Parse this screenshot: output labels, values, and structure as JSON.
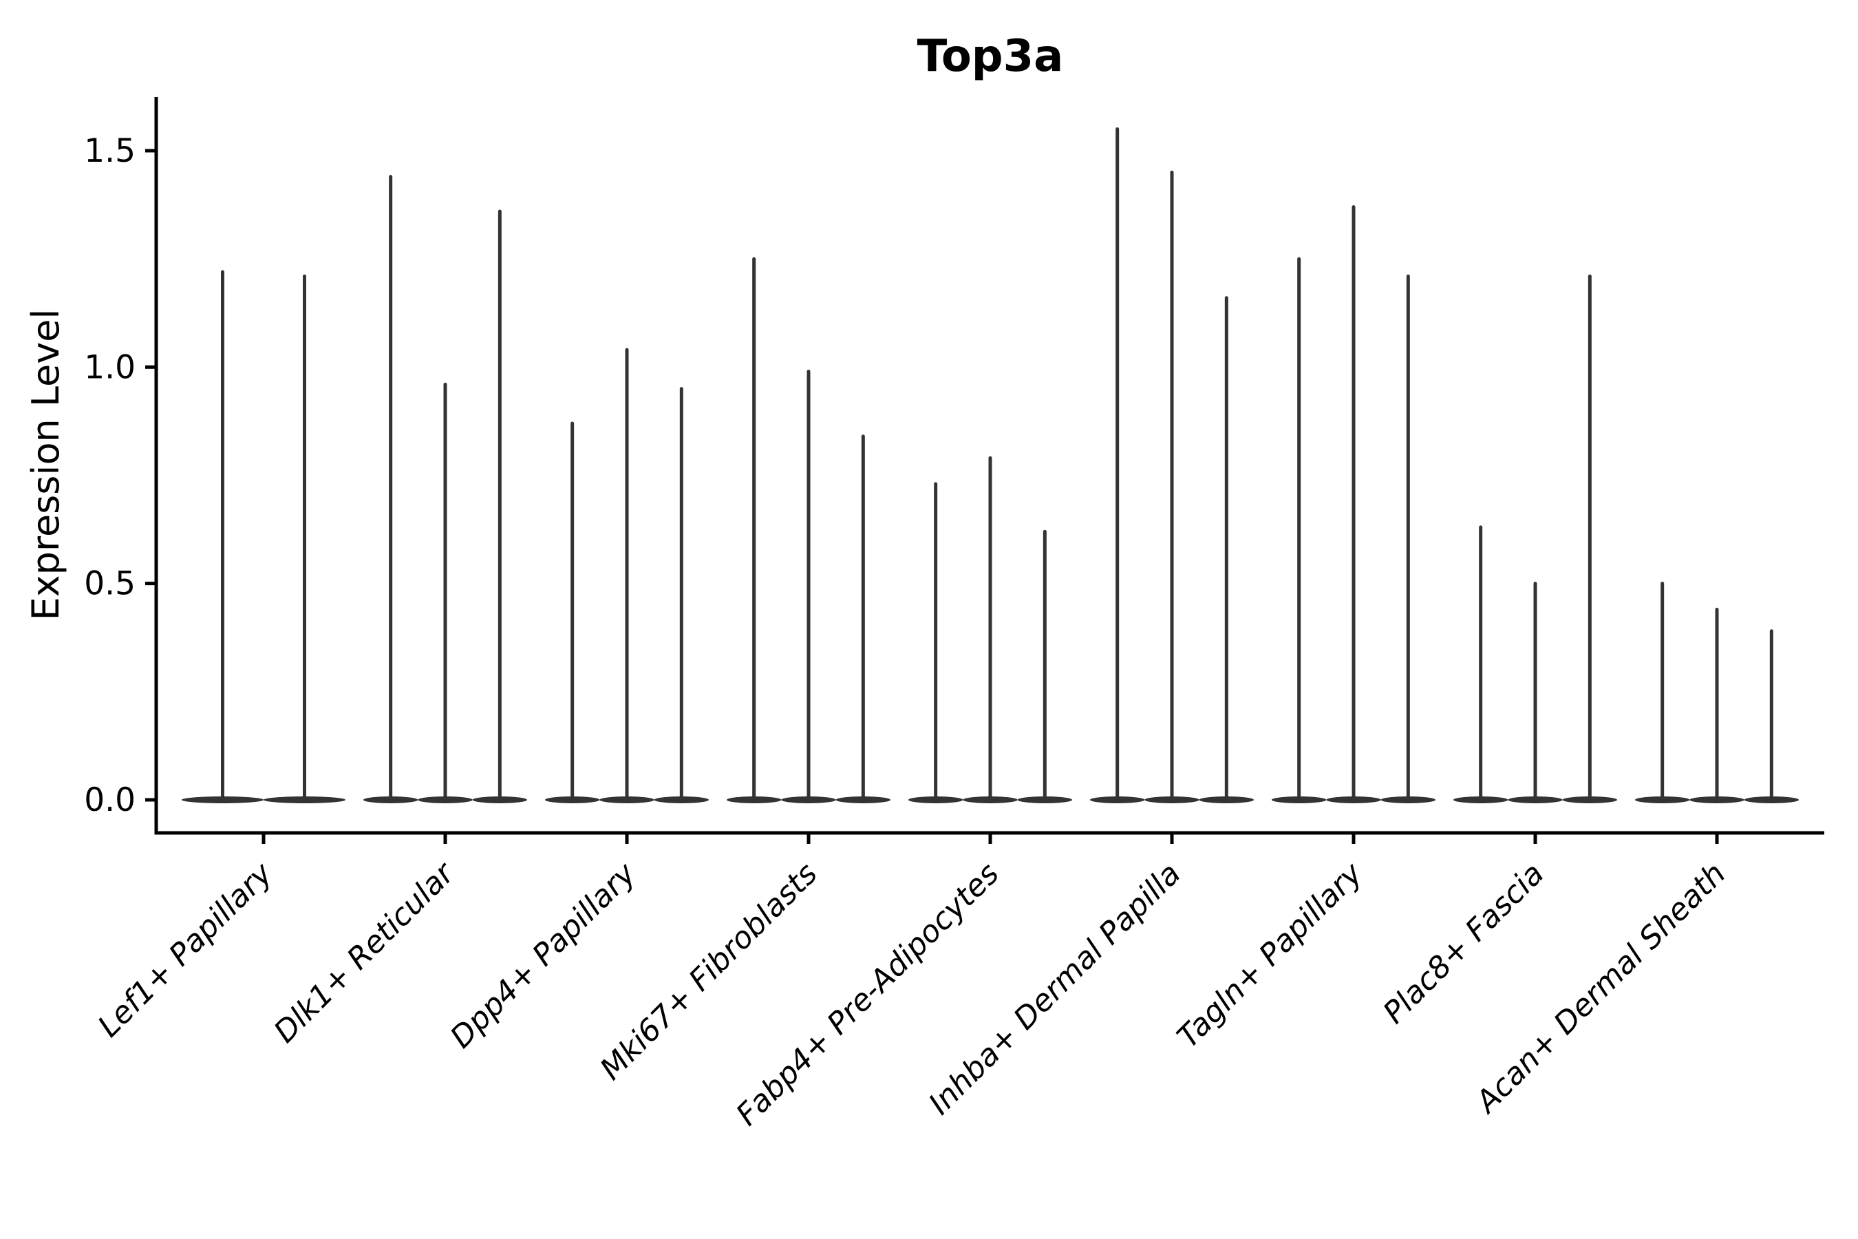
{
  "title": "Top3a",
  "colors": {
    "background": "#ffffff",
    "violin": "#333333",
    "axis": "#000000",
    "text": "#000000"
  },
  "chart_data": {
    "type": "violin",
    "title": "Top3a",
    "xlabel": "",
    "ylabel": "Expression Level",
    "ylim": [
      -0.08,
      1.62
    ],
    "yticks": [
      0.0,
      0.5,
      1.0,
      1.5
    ],
    "ytick_labels": [
      "0.0",
      "0.5",
      "1.0",
      "1.5"
    ],
    "grid": false,
    "legend": "none",
    "x_label_rotation_deg": 45,
    "violin_shape_note": "Each violin is a flat dense body at expression 0 with a single thin vertical tail (spike) rising to the group's maximum expression value.",
    "categories": [
      "Lef1+ Papillary",
      "Dlk1+ Reticular",
      "Dpp4+ Papillary",
      "Mki67+ Fibroblasts",
      "Fabp4+ Pre-Adipocytes",
      "Inhba+ Dermal Papilla",
      "Tagln+ Papillary",
      "Plac8+ Fascia",
      "Acan+ Dermal Sheath"
    ],
    "groups": [
      {
        "label": "Lef1+ Papillary",
        "violin_max_values": [
          1.22,
          1.21
        ]
      },
      {
        "label": "Dlk1+ Reticular",
        "violin_max_values": [
          1.44,
          0.96,
          1.36
        ]
      },
      {
        "label": "Dpp4+ Papillary",
        "violin_max_values": [
          0.87,
          1.04,
          0.95
        ]
      },
      {
        "label": "Mki67+ Fibroblasts",
        "violin_max_values": [
          1.25,
          0.99,
          0.84
        ]
      },
      {
        "label": "Fabp4+ Pre-Adipocytes",
        "violin_max_values": [
          0.73,
          0.79,
          0.62
        ]
      },
      {
        "label": "Inhba+ Dermal Papilla",
        "violin_max_values": [
          1.55,
          1.45,
          1.16
        ]
      },
      {
        "label": "Tagln+ Papillary",
        "violin_max_values": [
          1.25,
          1.37,
          1.21
        ]
      },
      {
        "label": "Plac8+ Fascia",
        "violin_max_values": [
          0.63,
          0.5,
          1.21
        ]
      },
      {
        "label": "Acan+ Dermal Sheath",
        "violin_max_values": [
          0.5,
          0.44,
          0.39
        ]
      }
    ]
  }
}
